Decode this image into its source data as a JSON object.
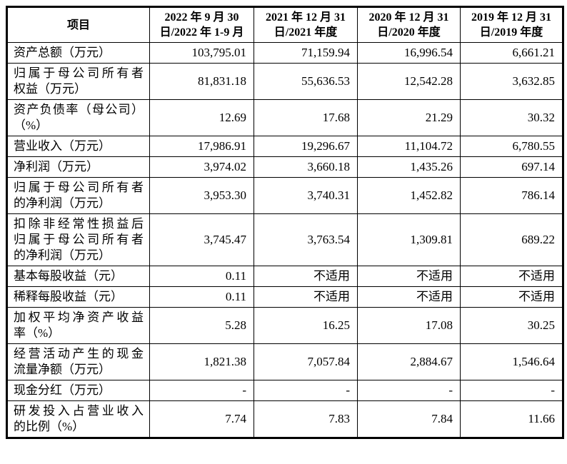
{
  "colors": {
    "border": "#000000",
    "text": "#000000",
    "background": "#ffffff"
  },
  "table": {
    "columns": [
      "项目",
      "2022 年 9 月 30\n日/2022 年 1-9 月",
      "2021 年 12 月 31\n日/2021 年度",
      "2020 年 12 月 31\n日/2020 年度",
      "2019 年 12 月 31\n日/2019 年度"
    ],
    "rows": [
      {
        "label": "资产总额（万元）",
        "values": [
          "103,795.01",
          "71,159.94",
          "16,996.54",
          "6,661.21"
        ]
      },
      {
        "label": "归属于母公司所有者\n权益（万元）",
        "values": [
          "81,831.18",
          "55,636.53",
          "12,542.28",
          "3,632.85"
        ]
      },
      {
        "label": "资产负债率（母公司）\n（%）",
        "values": [
          "12.69",
          "17.68",
          "21.29",
          "30.32"
        ]
      },
      {
        "label": "营业收入（万元）",
        "values": [
          "17,986.91",
          "19,296.67",
          "11,104.72",
          "6,780.55"
        ]
      },
      {
        "label": "净利润（万元）",
        "values": [
          "3,974.02",
          "3,660.18",
          "1,435.26",
          "697.14"
        ]
      },
      {
        "label": "归属于母公司所有者\n的净利润（万元）",
        "values": [
          "3,953.30",
          "3,740.31",
          "1,452.82",
          "786.14"
        ]
      },
      {
        "label": "扣除非经常性损益后\n归属于母公司所有者\n的净利润（万元）",
        "values": [
          "3,745.47",
          "3,763.54",
          "1,309.81",
          "689.22"
        ]
      },
      {
        "label": "基本每股收益（元）",
        "values": [
          "0.11",
          "不适用",
          "不适用",
          "不适用"
        ]
      },
      {
        "label": "稀释每股收益（元）",
        "values": [
          "0.11",
          "不适用",
          "不适用",
          "不适用"
        ]
      },
      {
        "label": "加权平均净资产收益\n率（%）",
        "values": [
          "5.28",
          "16.25",
          "17.08",
          "30.25"
        ]
      },
      {
        "label": "经营活动产生的现金\n流量净额（万元）",
        "values": [
          "1,821.38",
          "7,057.84",
          "2,884.67",
          "1,546.64"
        ]
      },
      {
        "label": "现金分红（万元）",
        "values": [
          "-",
          "-",
          "-",
          "-"
        ]
      },
      {
        "label": "研发投入占营业收入\n的比例（%）",
        "values": [
          "7.74",
          "7.83",
          "7.84",
          "11.66"
        ]
      }
    ]
  }
}
